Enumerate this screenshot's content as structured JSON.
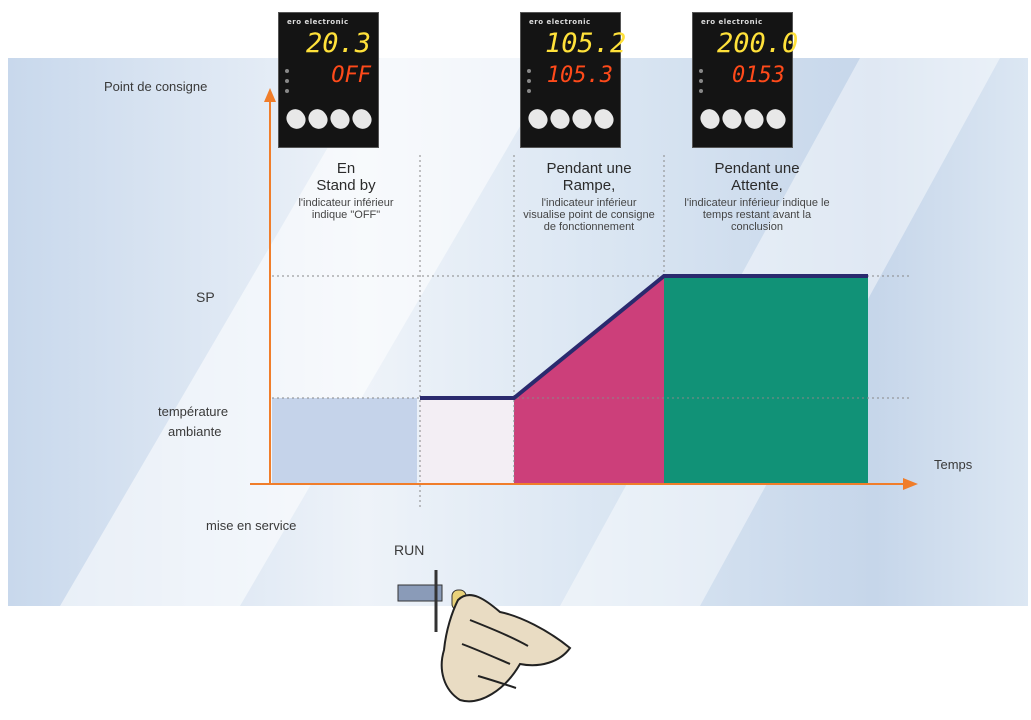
{
  "diagram": {
    "y_axis_label": "Point de consigne",
    "x_axis_label": "Temps",
    "sp_label": "SP",
    "ambient_label_line1": "température",
    "ambient_label_line2": "ambiante",
    "start_label": "mise en service",
    "run_label": "RUN"
  },
  "controllers": [
    {
      "brand": "ero electronic",
      "pv": "20.3",
      "sv": "OFF",
      "pv_color": "#ffe13a"
    },
    {
      "brand": "ero electronic",
      "pv": "105.2",
      "sv": "105.3",
      "pv_color": "#ffe13a"
    },
    {
      "brand": "ero electronic",
      "pv": "200.0",
      "sv": "0153",
      "pv_color": "#ffe13a"
    }
  ],
  "phases": [
    {
      "title1": "En",
      "title2": "Stand by",
      "description": "l'indicateur inférieur indique \"OFF\""
    },
    {
      "title1": "Pendant une",
      "title2": "Rampe,",
      "description": "l'indicateur inférieur visualise point de consigne de fonctionnement"
    },
    {
      "title1": "Pendant une",
      "title2": "Attente,",
      "description": "l'indicateur inférieur indique le temps restant avant la conclusion"
    }
  ],
  "colors": {
    "axis": "#f07d2a",
    "ambient_fill": "#c5d3ea",
    "pale_fill": "#f3eef4",
    "ramp_fill": "#cc3f7a",
    "soak_fill": "#119277",
    "profile_line": "#2a2a6e",
    "background_band": "#d6e3f1"
  }
}
